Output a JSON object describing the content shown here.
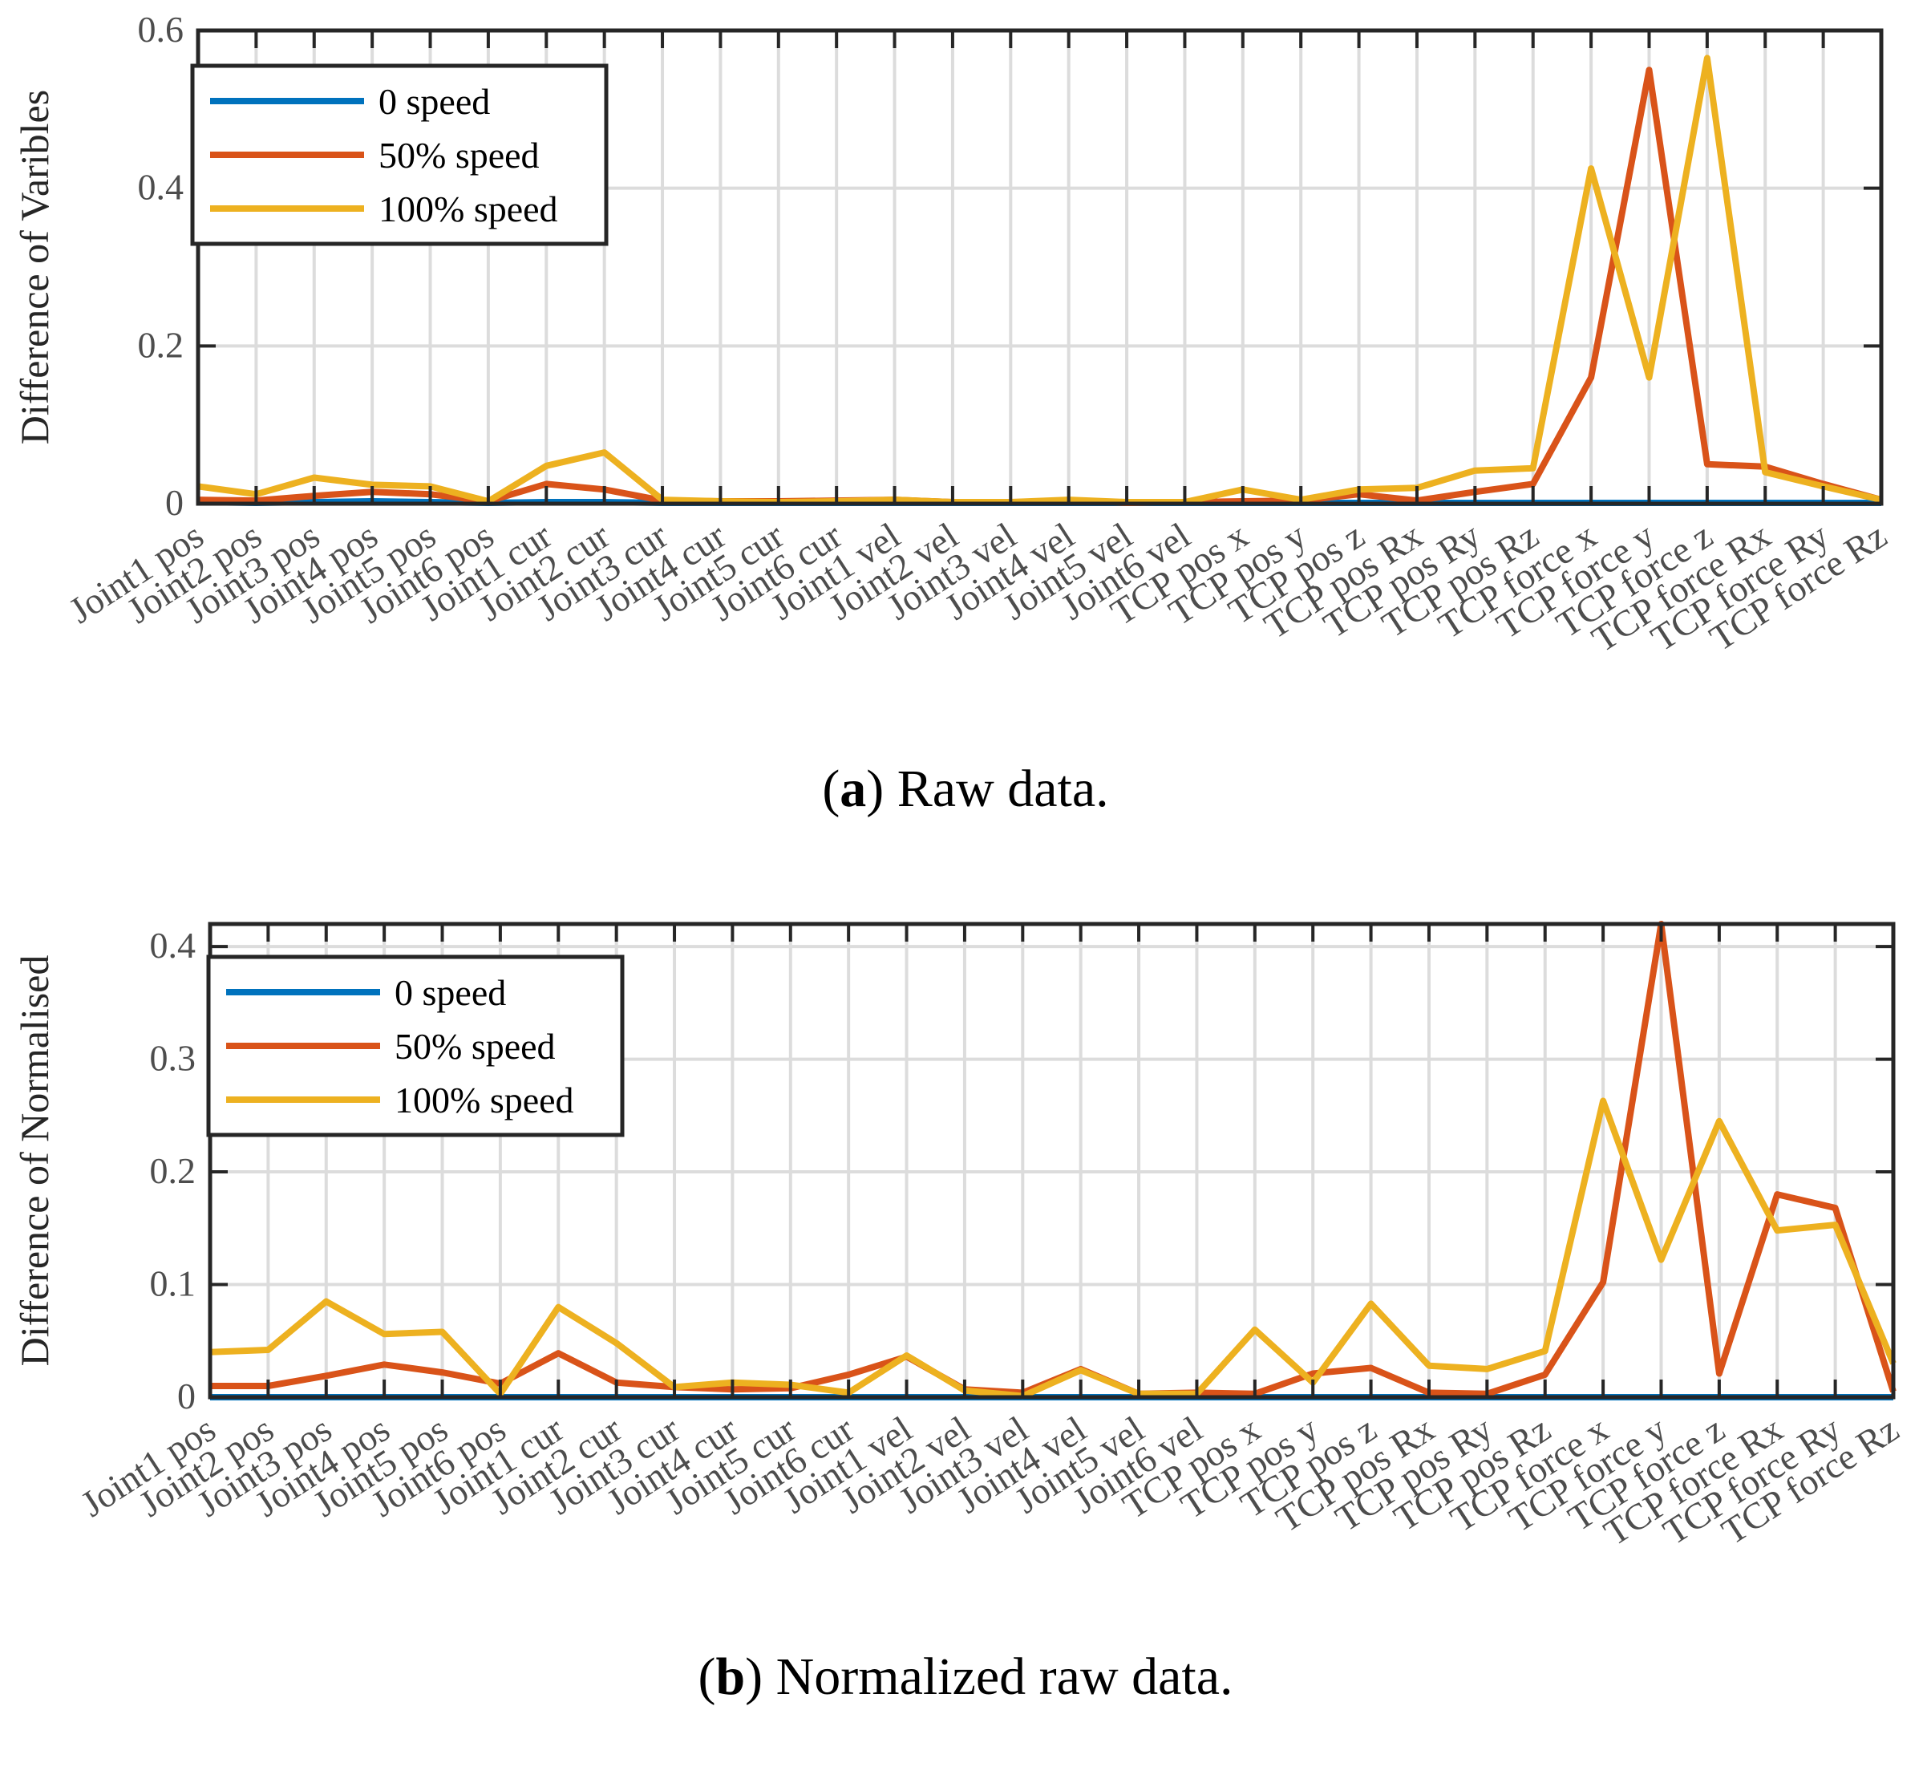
{
  "colors": {
    "series_0": "#0072BD",
    "series_50": "#D95319",
    "series_100": "#EDB120",
    "axis": "#262626",
    "grid": "#DCDCDC",
    "tick_label": "#4D4D4D"
  },
  "categories": [
    "Joint1 pos",
    "Joint2 pos",
    "Joint3 pos",
    "Joint4 pos",
    "Joint5 pos",
    "Joint6 pos",
    "Joint1 cur",
    "Joint2 cur",
    "Joint3 cur",
    "Joint4 cur",
    "Joint5 cur",
    "Joint6 cur",
    "Joint1 vel",
    "Joint2 vel",
    "Joint3 vel",
    "Joint4 vel",
    "Joint5 vel",
    "Joint6 vel",
    "TCP pos x",
    "TCP pos y",
    "TCP pos z",
    "TCP pos Rx",
    "TCP pos Ry",
    "TCP pos Rz",
    "TCP force x",
    "TCP force y",
    "TCP force z",
    "TCP force Rx",
    "TCP force Ry",
    "TCP force Rz"
  ],
  "chart_data": [
    {
      "type": "line",
      "title": "",
      "caption": {
        "label": "a",
        "text": "Raw data."
      },
      "xlabel": "",
      "ylabel": "Difference of Varibles",
      "ylim": [
        0,
        0.6
      ],
      "yticks": [
        0,
        0.2,
        0.4,
        0.6
      ],
      "ytick_labels": [
        "0",
        "0.2",
        "0.4",
        "0.6"
      ],
      "grid": true,
      "legend": "top-left",
      "series": [
        {
          "name": "0 speed",
          "color_key": "series_0",
          "values": [
            0.002,
            0.001,
            0.002,
            0.003,
            0.002,
            0.001,
            0.002,
            0.002,
            0.001,
            0.001,
            0.001,
            0.001,
            0.001,
            0.001,
            0.001,
            0.001,
            0.001,
            0.001,
            0.001,
            0.001,
            0.001,
            0.001,
            0.001,
            0.001,
            0.001,
            0.001,
            0.001,
            0.001,
            0.001,
            0.001
          ]
        },
        {
          "name": "50% speed",
          "color_key": "series_50",
          "values": [
            0.005,
            0.004,
            0.01,
            0.015,
            0.012,
            0.003,
            0.025,
            0.018,
            0.004,
            0.003,
            0.003,
            0.004,
            0.005,
            0.002,
            0.002,
            0.003,
            0.001,
            0.002,
            0.003,
            0.004,
            0.012,
            0.004,
            0.015,
            0.025,
            0.16,
            0.55,
            0.05,
            0.047,
            0.025,
            0.005
          ]
        },
        {
          "name": "100% speed",
          "color_key": "series_100",
          "values": [
            0.022,
            0.012,
            0.033,
            0.024,
            0.022,
            0.003,
            0.048,
            0.065,
            0.005,
            0.003,
            0.002,
            0.003,
            0.005,
            0.002,
            0.002,
            0.005,
            0.002,
            0.002,
            0.018,
            0.005,
            0.018,
            0.02,
            0.042,
            0.045,
            0.425,
            0.16,
            0.565,
            0.04,
            0.022,
            0.005
          ]
        }
      ]
    },
    {
      "type": "line",
      "title": "",
      "caption": {
        "label": "b",
        "text": "Normalized raw data."
      },
      "xlabel": "",
      "ylabel": "Difference of Normalised",
      "ylim": [
        0,
        0.42
      ],
      "yticks": [
        0,
        0.1,
        0.2,
        0.3,
        0.4
      ],
      "ytick_labels": [
        "0",
        "0.1",
        "0.2",
        "0.3",
        "0.4"
      ],
      "grid": true,
      "legend": "top-left",
      "series": [
        {
          "name": "0 speed",
          "color_key": "series_0",
          "values": [
            0,
            0,
            0,
            0,
            0,
            0,
            0,
            0,
            0,
            0,
            0,
            0,
            0,
            0,
            0,
            0,
            0,
            0,
            0,
            0,
            0,
            0,
            0,
            0,
            0,
            0,
            0,
            0,
            0,
            0
          ]
        },
        {
          "name": "50% speed",
          "color_key": "series_50",
          "values": [
            0.01,
            0.01,
            0.019,
            0.029,
            0.022,
            0.012,
            0.039,
            0.013,
            0.009,
            0.007,
            0.008,
            0.02,
            0.036,
            0.007,
            0.004,
            0.025,
            0.003,
            0.004,
            0.003,
            0.021,
            0.026,
            0.004,
            0.003,
            0.02,
            0.102,
            0.42,
            0.021,
            0.18,
            0.168,
            0.005
          ]
        },
        {
          "name": "100% speed",
          "color_key": "series_100",
          "values": [
            0.04,
            0.042,
            0.085,
            0.056,
            0.058,
            0.003,
            0.08,
            0.048,
            0.009,
            0.013,
            0.011,
            0.004,
            0.037,
            0.006,
            0.001,
            0.024,
            0.003,
            0.003,
            0.06,
            0.013,
            0.083,
            0.028,
            0.025,
            0.041,
            0.263,
            0.122,
            0.245,
            0.148,
            0.153,
            0.03
          ]
        }
      ]
    }
  ]
}
